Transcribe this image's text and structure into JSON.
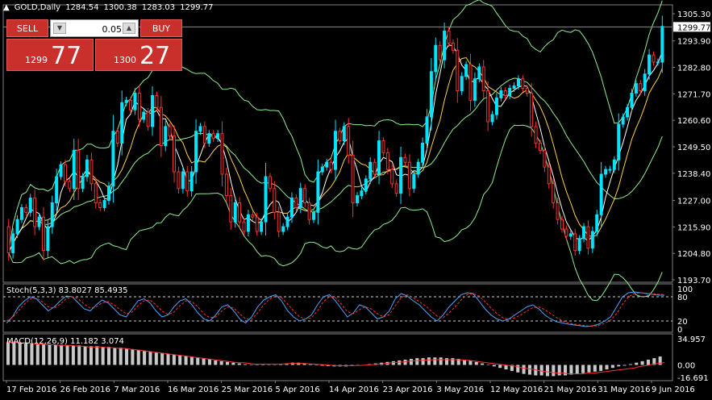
{
  "window": {
    "symbol_title": "GOLD,Daily",
    "ohlc": [
      "1284.54",
      "1300.38",
      "1283.03",
      "1299.77"
    ]
  },
  "trade_panel": {
    "sell_label": "SELL",
    "buy_label": "BUY",
    "lot_value": "0.05",
    "sell_price_small": "1299",
    "sell_price_big": "77",
    "buy_price_small": "1300",
    "buy_price_big": "27"
  },
  "colors": {
    "bull_candle": "#00e5ff",
    "bear_candle": "#ff3030",
    "bollinger": "#90ee90",
    "ma_fast": "#ffffff",
    "ma_slow": "#ffd24a",
    "stoch_main": "#4da6ff",
    "stoch_signal": "#ff3030",
    "macd_hist": "#c8c8c8",
    "macd_signal": "#ff3030"
  },
  "chart_data": [
    {
      "type": "candlestick",
      "title": "GOLD,Daily",
      "y_ticks": [
        "1305.30",
        "1293.90",
        "1282.80",
        "1271.70",
        "1260.60",
        "1249.50",
        "1238.40",
        "1227.00",
        "1215.90",
        "1204.80",
        "1193.70"
      ],
      "current_price_label": "1299.77",
      "x_ticks": [
        "17 Feb 2016",
        "26 Feb 2016",
        "7 Mar 2016",
        "16 Mar 2016",
        "25 Mar 2016",
        "5 Apr 2016",
        "14 Apr 2016",
        "23 Apr 2016",
        "3 May 2016",
        "12 May 2016",
        "21 May 2016",
        "31 May 2016",
        "9 Jun 2016"
      ],
      "ylim": [
        1193.7,
        1305.3
      ],
      "closes": [
        1205,
        1213,
        1219,
        1224,
        1222,
        1228,
        1216,
        1220,
        1206,
        1216,
        1226,
        1237,
        1242,
        1235,
        1232,
        1248,
        1232,
        1237,
        1244,
        1234,
        1226,
        1224,
        1227,
        1233,
        1256,
        1251,
        1268,
        1269,
        1265,
        1272,
        1261,
        1264,
        1258,
        1271,
        1266,
        1250,
        1258,
        1254,
        1239,
        1232,
        1239,
        1231,
        1239,
        1256,
        1258,
        1251,
        1255,
        1253,
        1255,
        1238,
        1229,
        1218,
        1226,
        1218,
        1214,
        1221,
        1220,
        1214,
        1218,
        1237,
        1232,
        1222,
        1214,
        1216,
        1220,
        1228,
        1224,
        1232,
        1226,
        1219,
        1222,
        1239,
        1241,
        1243,
        1240,
        1256,
        1252,
        1258,
        1246,
        1226,
        1229,
        1231,
        1236,
        1243,
        1238,
        1252,
        1247,
        1240,
        1234,
        1230,
        1245,
        1243,
        1232,
        1238,
        1243,
        1251,
        1262,
        1281,
        1292,
        1286,
        1298,
        1293,
        1290,
        1273,
        1279,
        1284,
        1269,
        1278,
        1283,
        1273,
        1260,
        1263,
        1270,
        1273,
        1271,
        1274,
        1275,
        1278,
        1274,
        1272,
        1258,
        1251,
        1248,
        1241,
        1234,
        1226,
        1219,
        1215,
        1212,
        1213,
        1206,
        1211,
        1216,
        1207,
        1214,
        1221,
        1238,
        1240,
        1240,
        1244,
        1259,
        1262,
        1266,
        1272,
        1276,
        1273,
        1280,
        1288,
        1285,
        1285,
        1300
      ],
      "opens": [
        1216,
        1205,
        1213,
        1219,
        1224,
        1222,
        1228,
        1216,
        1220,
        1206,
        1216,
        1226,
        1237,
        1242,
        1235,
        1232,
        1248,
        1232,
        1237,
        1244,
        1234,
        1226,
        1224,
        1227,
        1233,
        1256,
        1251,
        1268,
        1269,
        1265,
        1272,
        1261,
        1264,
        1258,
        1271,
        1266,
        1250,
        1258,
        1254,
        1239,
        1232,
        1239,
        1231,
        1239,
        1256,
        1258,
        1251,
        1255,
        1253,
        1255,
        1238,
        1229,
        1218,
        1226,
        1218,
        1214,
        1221,
        1220,
        1214,
        1218,
        1237,
        1232,
        1222,
        1214,
        1216,
        1220,
        1228,
        1224,
        1232,
        1226,
        1219,
        1222,
        1239,
        1241,
        1243,
        1240,
        1256,
        1252,
        1258,
        1246,
        1226,
        1229,
        1231,
        1236,
        1243,
        1238,
        1252,
        1247,
        1240,
        1234,
        1230,
        1245,
        1243,
        1232,
        1238,
        1243,
        1251,
        1262,
        1281,
        1292,
        1286,
        1298,
        1293,
        1290,
        1273,
        1279,
        1284,
        1269,
        1278,
        1283,
        1273,
        1260,
        1263,
        1270,
        1273,
        1271,
        1274,
        1275,
        1278,
        1274,
        1272,
        1258,
        1251,
        1248,
        1241,
        1234,
        1226,
        1219,
        1215,
        1212,
        1213,
        1206,
        1211,
        1216,
        1207,
        1214,
        1221,
        1238,
        1240,
        1240,
        1244,
        1259,
        1262,
        1266,
        1272,
        1276,
        1273,
        1280,
        1288,
        1285,
        1285
      ]
    },
    {
      "type": "line",
      "title": "Stoch(5,3,3) 83.8027 85.4935",
      "y_ticks": [
        "100",
        "80",
        "20",
        "0"
      ],
      "ylim": [
        0,
        100
      ],
      "levels": [
        80,
        20
      ],
      "series_main": [
        15,
        30,
        55,
        70,
        80,
        75,
        60,
        45,
        55,
        70,
        82,
        80,
        65,
        50,
        45,
        60,
        72,
        65,
        50,
        35,
        30,
        50,
        70,
        75,
        65,
        45,
        30,
        35,
        55,
        70,
        75,
        60,
        40,
        25,
        20,
        35,
        55,
        60,
        45,
        25,
        15,
        30,
        55,
        72,
        80,
        85,
        70,
        45,
        30,
        20,
        25,
        35,
        60,
        80,
        85,
        70,
        50,
        30,
        40,
        60,
        55,
        40,
        25,
        30,
        45,
        75,
        88,
        82,
        70,
        60,
        45,
        30,
        20,
        35,
        55,
        70,
        85,
        90,
        88,
        70,
        50,
        35,
        25,
        20,
        25,
        35,
        45,
        55,
        60,
        50,
        35,
        25,
        18,
        15,
        12,
        10,
        8,
        6,
        8,
        12,
        20,
        30,
        55,
        80,
        90,
        92,
        90,
        88,
        86,
        84,
        83.8
      ],
      "series_signal": [
        20,
        28,
        45,
        62,
        75,
        77,
        68,
        55,
        52,
        62,
        75,
        80,
        75,
        62,
        52,
        55,
        65,
        68,
        60,
        48,
        38,
        42,
        58,
        70,
        72,
        60,
        45,
        36,
        42,
        58,
        70,
        68,
        55,
        38,
        28,
        30,
        45,
        55,
        52,
        38,
        25,
        24,
        40,
        60,
        74,
        82,
        78,
        62,
        45,
        30,
        25,
        28,
        45,
        68,
        80,
        78,
        62,
        43,
        38,
        48,
        55,
        50,
        38,
        30,
        36,
        58,
        78,
        85,
        78,
        68,
        58,
        45,
        32,
        28,
        40,
        55,
        72,
        85,
        88,
        82,
        68,
        52,
        38,
        28,
        24,
        28,
        35,
        45,
        53,
        55,
        48,
        38,
        28,
        20,
        15,
        12,
        10,
        8,
        7,
        9,
        14,
        22,
        38,
        62,
        80,
        88,
        90,
        89,
        87,
        86,
        85.5
      ]
    },
    {
      "type": "bar",
      "title": "MACD(12,26,9) 11.182 3.074",
      "y_ticks": [
        "34.957",
        "0.00",
        "-16.691"
      ],
      "ylim": [
        -16.691,
        34.957
      ],
      "histogram": [
        31,
        31,
        30,
        30,
        29,
        28,
        28,
        27,
        27,
        27,
        26,
        26,
        26,
        25,
        25,
        25,
        24,
        24,
        23,
        23,
        22,
        21,
        20,
        19,
        18,
        17,
        16,
        15,
        14,
        13,
        12,
        11,
        10,
        9,
        8,
        6,
        5,
        4,
        3,
        2,
        1,
        0.5,
        0.2,
        0,
        0.5,
        1,
        1.5,
        2,
        3,
        3,
        2,
        1,
        0,
        -1,
        -1.5,
        -2,
        -2,
        -2,
        -1.5,
        -1,
        0,
        1,
        2,
        3,
        4,
        5,
        6,
        7,
        8,
        9,
        9,
        10,
        10,
        10,
        9,
        9,
        8,
        7,
        6,
        4,
        2,
        0,
        -2,
        -4,
        -6,
        -8,
        -10,
        -12,
        -13,
        -14,
        -14,
        -15,
        -15,
        -14,
        -14,
        -13,
        -12,
        -11,
        -10,
        -9,
        -8,
        -6,
        -4,
        -2,
        -1,
        1,
        3,
        5,
        7,
        9,
        11.2
      ],
      "signal": [
        30,
        30,
        30,
        29,
        29,
        28,
        28,
        27,
        27,
        26,
        26,
        26,
        25,
        25,
        24,
        24,
        24,
        23,
        23,
        22,
        22,
        21,
        20,
        19,
        18,
        17,
        16,
        15,
        14,
        13,
        12,
        11,
        10,
        9,
        8,
        7,
        6,
        5,
        4,
        3,
        3,
        2,
        1,
        1,
        1,
        1,
        1,
        1.5,
        2,
        2,
        2,
        1.5,
        1,
        0.5,
        0,
        -0.5,
        -1,
        -1,
        -1,
        -0.8,
        -0.5,
        0,
        0.5,
        1,
        2,
        3,
        3.5,
        4,
        5,
        5.5,
        6,
        6.5,
        7,
        7,
        7,
        7,
        7,
        6.5,
        6,
        5,
        4,
        3,
        2,
        1,
        0,
        -1,
        -2,
        -4,
        -5,
        -6,
        -8,
        -9,
        -10,
        -11,
        -11,
        -12,
        -12,
        -12,
        -11,
        -11,
        -10,
        -9,
        -8,
        -7,
        -6,
        -5,
        -4,
        -2,
        -1,
        1,
        2,
        3.07
      ]
    }
  ]
}
